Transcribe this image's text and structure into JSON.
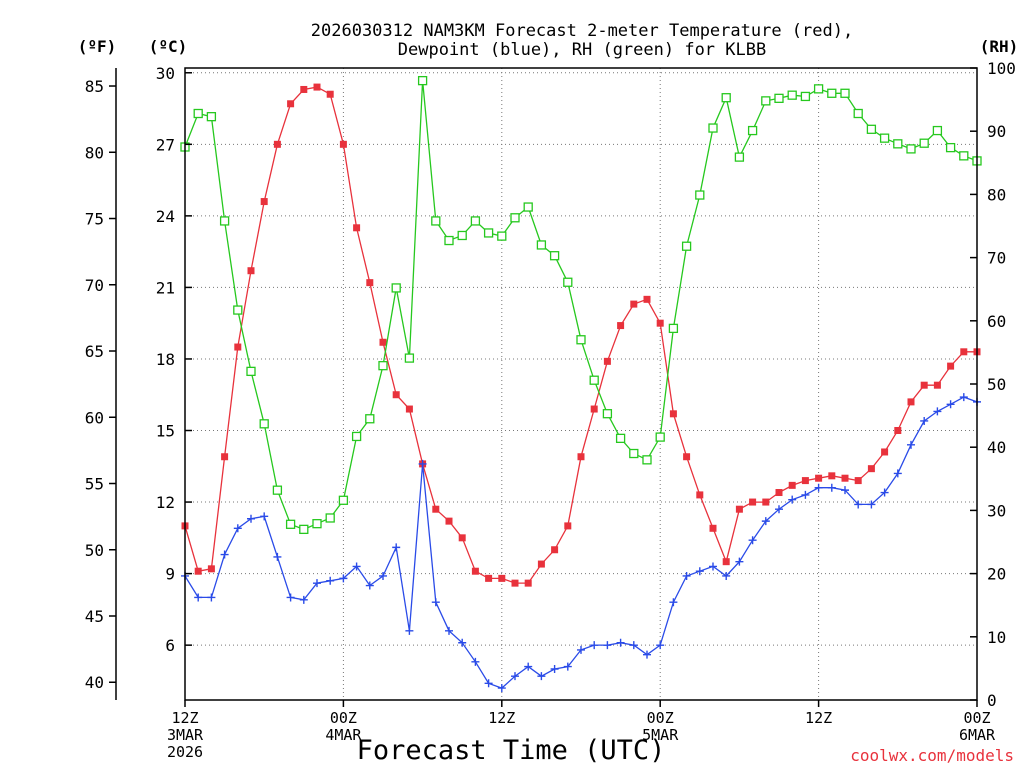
{
  "chart_data": {
    "type": "line",
    "title_line1": "2026030312 NAM3KM Forecast 2-meter Temperature (red),",
    "title_line2": "Dewpoint (blue), RH (green) for KLBB",
    "xlabel": "Forecast Time (UTC)",
    "unit_f": "(ºF)",
    "unit_c": "(ºC)",
    "unit_rh": "(RH)",
    "credit": "coolwx.com/models",
    "hour_range": [
      0,
      60
    ],
    "celsius_range": [
      3.7,
      30.2
    ],
    "rh_range": [
      0,
      100
    ],
    "x_ticks": [
      {
        "hour": 0,
        "lines": [
          "12Z",
          "3MAR",
          "2026"
        ]
      },
      {
        "hour": 12,
        "lines": [
          "00Z",
          "4MAR"
        ]
      },
      {
        "hour": 24,
        "lines": [
          "12Z"
        ]
      },
      {
        "hour": 36,
        "lines": [
          "00Z",
          "5MAR"
        ]
      },
      {
        "hour": 48,
        "lines": [
          "12Z"
        ]
      },
      {
        "hour": 60,
        "lines": [
          "00Z",
          "6MAR"
        ]
      }
    ],
    "celsius_ticks": [
      "6",
      "9",
      "12",
      "15",
      "18",
      "21",
      "24",
      "27",
      "30"
    ],
    "fahrenheit_ticks": [
      "40",
      "45",
      "50",
      "55",
      "60",
      "65",
      "70",
      "75",
      "80",
      "85"
    ],
    "rh_ticks": [
      "0",
      "10",
      "20",
      "30",
      "40",
      "50",
      "60",
      "70",
      "80",
      "90",
      "100"
    ],
    "series": [
      {
        "name": "Temperature",
        "unit": "C",
        "color": "#e8323c",
        "marker": "filled-square",
        "values": [
          11.0,
          9.1,
          9.2,
          13.9,
          18.5,
          21.7,
          24.6,
          27.0,
          28.7,
          29.3,
          29.4,
          29.1,
          27.0,
          23.5,
          21.2,
          18.7,
          16.5,
          15.9,
          13.6,
          11.7,
          11.2,
          10.5,
          9.1,
          8.8,
          8.8,
          8.6,
          8.6,
          9.4,
          10.0,
          11.0,
          13.9,
          15.9,
          17.9,
          19.4,
          20.3,
          20.5,
          19.5,
          15.7,
          13.9,
          12.3,
          10.9,
          9.5,
          11.7,
          12.0,
          12.0,
          12.4,
          12.7,
          12.9,
          13.0,
          13.1,
          13.0,
          12.9,
          13.4,
          14.1,
          15.0,
          16.2,
          16.9,
          16.9,
          17.7,
          18.3,
          18.3
        ]
      },
      {
        "name": "Dewpoint",
        "unit": "C",
        "color": "#2a4be8",
        "marker": "plus",
        "values": [
          8.9,
          8.0,
          8.0,
          9.8,
          10.9,
          11.3,
          11.4,
          9.7,
          8.0,
          7.9,
          8.6,
          8.7,
          8.8,
          9.3,
          8.5,
          8.9,
          10.1,
          6.6,
          13.6,
          7.8,
          6.6,
          6.1,
          5.3,
          4.4,
          4.2,
          4.7,
          5.1,
          4.7,
          5.0,
          5.1,
          5.8,
          6.0,
          6.0,
          6.1,
          6.0,
          5.6,
          6.0,
          7.8,
          8.9,
          9.1,
          9.3,
          8.9,
          9.5,
          10.4,
          11.2,
          11.7,
          12.1,
          12.3,
          12.6,
          12.6,
          12.5,
          11.9,
          11.9,
          12.4,
          13.2,
          14.4,
          15.4,
          15.8,
          16.1,
          16.4,
          16.2
        ]
      },
      {
        "name": "RH",
        "unit": "%",
        "color": "#26c81e",
        "marker": "open-square",
        "values": [
          87.5,
          92.8,
          92.3,
          75.8,
          61.7,
          52.0,
          43.7,
          33.2,
          27.8,
          27.0,
          27.9,
          28.8,
          31.6,
          41.7,
          44.5,
          52.9,
          65.2,
          54.1,
          98.0,
          75.8,
          72.7,
          73.5,
          75.8,
          73.9,
          73.4,
          76.3,
          78.0,
          72.0,
          70.3,
          66.1,
          57.0,
          50.6,
          45.3,
          41.4,
          39.0,
          38.0,
          41.6,
          58.8,
          71.8,
          79.9,
          90.5,
          95.3,
          85.9,
          90.1,
          94.8,
          95.2,
          95.7,
          95.5,
          96.7,
          96.0,
          96.0,
          92.8,
          90.3,
          88.9,
          88.0,
          87.2,
          88.1,
          90.1,
          87.4,
          86.1,
          85.3
        ]
      }
    ]
  }
}
